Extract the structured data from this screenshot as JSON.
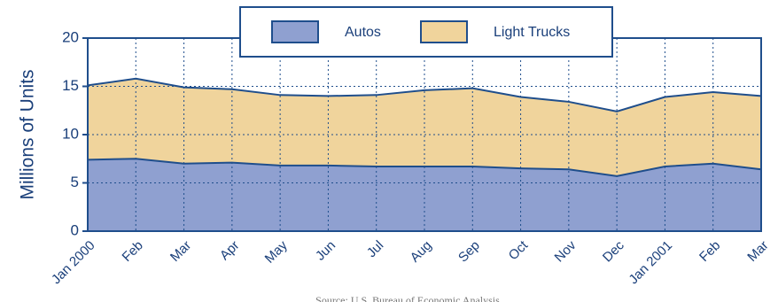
{
  "chart_data": {
    "type": "stacked_area",
    "y_label": "Millions of Units",
    "source": "Source: U.S. Bureau of Economic Analysis",
    "categories": [
      "Jan 2000",
      "Feb",
      "Mar",
      "Apr",
      "May",
      "Jun",
      "Jul",
      "Aug",
      "Sep",
      "Oct",
      "Nov",
      "Dec",
      "Jan 2001",
      "Feb",
      "Mar"
    ],
    "series": [
      {
        "name": "Autos",
        "color": "#8fa0d0",
        "values": [
          7.4,
          7.5,
          7.0,
          7.1,
          6.8,
          6.8,
          6.7,
          6.7,
          6.7,
          6.5,
          6.4,
          5.7,
          6.7,
          7.0,
          6.4
        ]
      },
      {
        "name": "Light Trucks",
        "color": "#f0d49c",
        "values": [
          7.7,
          8.3,
          7.9,
          7.6,
          7.3,
          7.2,
          7.4,
          7.9,
          8.1,
          7.4,
          7.0,
          6.7,
          7.2,
          7.4,
          7.6
        ]
      }
    ],
    "ylim": [
      0,
      20
    ],
    "yticks": [
      0,
      5,
      10,
      15,
      20
    ],
    "grid": true,
    "legend": "top"
  }
}
